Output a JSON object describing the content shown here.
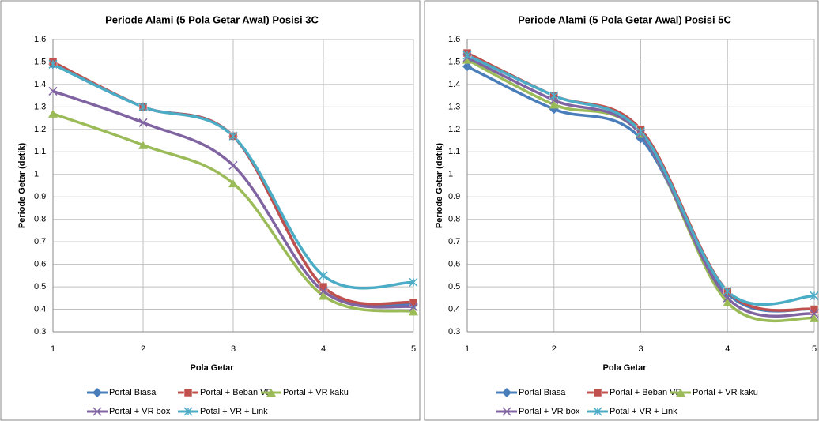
{
  "chart_data": [
    {
      "type": "line",
      "title": "Periode Alami (5 Pola Getar Awal) Posisi 3C",
      "x_label": "Pola Getar",
      "y_label": "Periode Getar (detik)",
      "x": [
        1,
        2,
        3,
        4,
        5
      ],
      "xlim": [
        1,
        5
      ],
      "xticks": [
        1,
        2,
        3,
        4,
        5
      ],
      "ylim": [
        0.3,
        1.6
      ],
      "yticks": [
        0.3,
        0.4,
        0.5,
        0.6,
        0.7,
        0.8,
        0.9,
        1,
        1.1,
        1.2,
        1.3,
        1.4,
        1.5,
        1.6
      ],
      "grid": true,
      "smooth": true,
      "series": [
        {
          "name": "Portal Biasa",
          "color": "#4a7ebb",
          "marker": "diamond",
          "values": [
            1.49,
            1.3,
            1.17,
            0.5,
            0.42
          ]
        },
        {
          "name": "Portal + Beban VR",
          "color": "#c0504d",
          "marker": "square",
          "values": [
            1.5,
            1.3,
            1.17,
            0.5,
            0.43
          ]
        },
        {
          "name": "Portal + VR kaku",
          "color": "#9bbb59",
          "marker": "triangle",
          "values": [
            1.27,
            1.13,
            0.96,
            0.46,
            0.39
          ]
        },
        {
          "name": "Portal + VR box",
          "color": "#8064a2",
          "marker": "x",
          "values": [
            1.37,
            1.23,
            1.04,
            0.48,
            0.41
          ]
        },
        {
          "name": "Potal + VR + Link",
          "color": "#4bacc6",
          "marker": "star",
          "values": [
            1.49,
            1.3,
            1.17,
            0.55,
            0.52
          ]
        }
      ]
    },
    {
      "type": "line",
      "title": "Periode Alami (5 Pola Getar Awal) Posisi 5C",
      "x_label": "Pola Getar",
      "y_label": "Periode Getar (detik)",
      "x": [
        1,
        2,
        3,
        4,
        5
      ],
      "xlim": [
        1,
        5
      ],
      "xticks": [
        1,
        2,
        3,
        4,
        5
      ],
      "ylim": [
        0.3,
        1.6
      ],
      "yticks": [
        0.3,
        0.4,
        0.5,
        0.6,
        0.7,
        0.8,
        0.9,
        1,
        1.1,
        1.2,
        1.3,
        1.4,
        1.5,
        1.6
      ],
      "grid": true,
      "smooth": true,
      "series": [
        {
          "name": "Portal Biasa",
          "color": "#4a7ebb",
          "marker": "diamond",
          "values": [
            1.48,
            1.29,
            1.16,
            0.47,
            0.4
          ]
        },
        {
          "name": "Portal + Beban VR",
          "color": "#c0504d",
          "marker": "square",
          "values": [
            1.54,
            1.35,
            1.2,
            0.48,
            0.4
          ]
        },
        {
          "name": "Portal + VR kaku",
          "color": "#9bbb59",
          "marker": "triangle",
          "values": [
            1.51,
            1.31,
            1.18,
            0.43,
            0.36
          ]
        },
        {
          "name": "Portal + VR box",
          "color": "#8064a2",
          "marker": "x",
          "values": [
            1.52,
            1.33,
            1.18,
            0.45,
            0.38
          ]
        },
        {
          "name": "Potal + VR + Link",
          "color": "#4bacc6",
          "marker": "star",
          "values": [
            1.53,
            1.35,
            1.19,
            0.48,
            0.46
          ]
        }
      ]
    }
  ]
}
